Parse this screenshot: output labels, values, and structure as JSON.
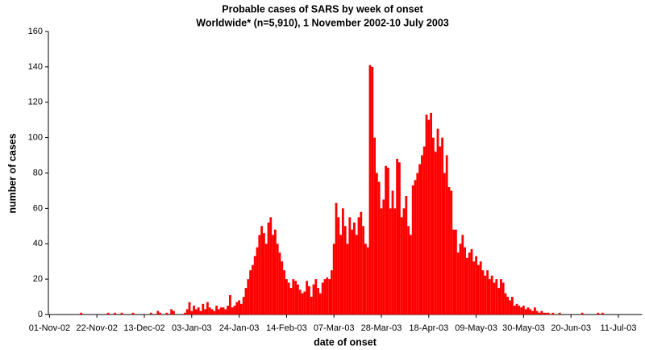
{
  "chart_data": {
    "type": "bar",
    "title": "Probable cases of SARS by week of onset",
    "subtitle": "Worldwide* (n=5,910), 1 November 2002-10 July 2003",
    "x_label": "date of onset",
    "y_label": "number of cases",
    "color": "#ff0000",
    "ylim": [
      0,
      160
    ],
    "yticks": [
      0,
      20,
      40,
      60,
      80,
      100,
      120,
      140,
      160
    ],
    "grid": false,
    "categories": [
      "01-Nov-02",
      null,
      null,
      null,
      null,
      null,
      null,
      null,
      null,
      null,
      null,
      null,
      null,
      null,
      null,
      null,
      null,
      null,
      null,
      null,
      null,
      "22-Nov-02",
      null,
      null,
      null,
      null,
      null,
      null,
      null,
      null,
      null,
      null,
      null,
      null,
      null,
      null,
      null,
      null,
      null,
      null,
      null,
      null,
      "13-Dec-02",
      null,
      null,
      null,
      null,
      null,
      null,
      null,
      null,
      null,
      null,
      null,
      null,
      null,
      null,
      null,
      null,
      null,
      null,
      null,
      null,
      "03-Jan-03",
      null,
      null,
      null,
      null,
      null,
      null,
      null,
      null,
      null,
      null,
      null,
      null,
      null,
      null,
      null,
      null,
      null,
      null,
      null,
      null,
      "24-Jan-03",
      null,
      null,
      null,
      null,
      null,
      null,
      null,
      null,
      null,
      null,
      null,
      null,
      null,
      null,
      null,
      null,
      null,
      null,
      null,
      null,
      "14-Feb-03",
      null,
      null,
      null,
      null,
      null,
      null,
      null,
      null,
      null,
      null,
      null,
      null,
      null,
      null,
      null,
      null,
      null,
      null,
      null,
      null,
      "07-Mar-03",
      null,
      null,
      null,
      null,
      null,
      null,
      null,
      null,
      null,
      null,
      null,
      null,
      null,
      null,
      null,
      null,
      null,
      null,
      null,
      null,
      "28-Mar-03",
      null,
      null,
      null,
      null,
      null,
      null,
      null,
      null,
      null,
      null,
      null,
      null,
      null,
      null,
      null,
      null,
      null,
      null,
      null,
      null,
      "18-Apr-03",
      null,
      null,
      null,
      null,
      null,
      null,
      null,
      null,
      null,
      null,
      null,
      null,
      null,
      null,
      null,
      null,
      null,
      null,
      null,
      null,
      "09-May-03",
      null,
      null,
      null,
      null,
      null,
      null,
      null,
      null,
      null,
      null,
      null,
      null,
      null,
      null,
      null,
      null,
      null,
      null,
      null,
      null,
      "30-May-03",
      null,
      null,
      null,
      null,
      null,
      null,
      null,
      null,
      null,
      null,
      null,
      null,
      null,
      null,
      null,
      null,
      null,
      null,
      null,
      null,
      "20-Jun-03",
      null,
      null,
      null,
      null,
      null,
      null,
      null,
      null,
      null,
      null,
      null,
      null,
      null,
      null,
      null,
      null,
      null,
      null,
      null,
      null,
      "11-Jul-03",
      null,
      null,
      null,
      null,
      null,
      null,
      null,
      null,
      null,
      null
    ],
    "values": [
      0,
      0,
      0,
      0,
      0,
      0,
      0,
      0,
      0,
      0,
      0,
      0,
      0,
      0,
      1,
      0,
      0,
      0,
      0,
      0,
      0,
      0,
      0,
      0,
      0,
      0,
      1,
      0,
      0,
      1,
      0,
      0,
      1,
      0,
      0,
      0,
      0,
      1,
      0,
      0,
      0,
      0,
      0,
      0,
      0,
      1,
      0,
      0,
      2,
      1,
      0,
      0,
      1,
      0,
      3,
      2,
      0,
      0,
      0,
      0,
      1,
      3,
      7,
      2,
      5,
      3,
      4,
      2,
      6,
      3,
      7,
      4,
      3,
      2,
      5,
      3,
      4,
      4,
      3,
      5,
      11,
      4,
      5,
      7,
      8,
      6,
      10,
      15,
      20,
      25,
      28,
      33,
      38,
      45,
      50,
      46,
      40,
      52,
      55,
      45,
      48,
      40,
      35,
      30,
      25,
      20,
      18,
      15,
      20,
      19,
      17,
      14,
      12,
      13,
      19,
      16,
      10,
      17,
      20,
      15,
      12,
      18,
      20,
      21,
      20,
      25,
      40,
      63,
      55,
      45,
      60,
      50,
      40,
      55,
      48,
      52,
      45,
      55,
      58,
      50,
      40,
      38,
      141,
      140,
      100,
      80,
      75,
      60,
      65,
      84,
      83,
      60,
      70,
      60,
      88,
      86,
      55,
      60,
      67,
      50,
      45,
      73,
      76,
      80,
      85,
      90,
      95,
      113,
      110,
      114,
      100,
      92,
      105,
      95,
      100,
      80,
      90,
      72,
      70,
      48,
      48,
      35,
      40,
      45,
      38,
      32,
      35,
      37,
      30,
      33,
      28,
      30,
      25,
      22,
      25,
      20,
      22,
      18,
      20,
      15,
      20,
      18,
      12,
      10,
      8,
      10,
      5,
      6,
      5,
      4,
      5,
      3,
      4,
      3,
      2,
      4,
      2,
      1,
      2,
      1,
      1,
      1,
      0,
      1,
      0,
      0,
      1,
      0,
      0,
      0,
      0,
      0,
      0,
      0,
      0,
      0,
      1,
      0,
      0,
      0,
      0,
      0,
      0,
      1,
      0,
      1,
      0,
      0,
      0,
      0,
      0,
      0,
      0,
      0,
      0,
      0,
      0,
      0,
      0,
      0,
      0,
      0,
      0
    ]
  }
}
